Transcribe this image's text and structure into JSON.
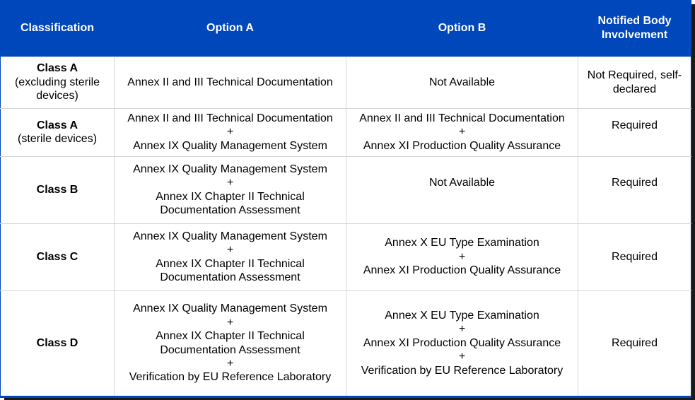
{
  "header": {
    "classification": "Classification",
    "option_a": "Option A",
    "option_b": "Option B",
    "notified_body": "Notified Body Involvement"
  },
  "rows": [
    {
      "class_name": "Class A",
      "class_sub": "(excluding sterile devices)",
      "option_a": [
        "Annex II and III Technical Documentation"
      ],
      "option_b": [
        "Not Available"
      ],
      "notified_body": "Not Required, self-declared"
    },
    {
      "class_name": "Class A",
      "class_sub": "(sterile devices)",
      "option_a": [
        "Annex II and III Technical Documentation",
        "+",
        "Annex IX Quality Management System"
      ],
      "option_b": [
        "Annex II and III Technical Documentation",
        "+",
        "Annex XI Production Quality Assurance"
      ],
      "notified_body": "Required"
    },
    {
      "class_name": "Class B",
      "class_sub": "",
      "option_a": [
        "Annex IX Quality Management System",
        "+",
        "Annex IX Chapter II Technical",
        "Documentation Assessment"
      ],
      "option_b": [
        "Not Available"
      ],
      "notified_body": "Required"
    },
    {
      "class_name": "Class C",
      "class_sub": "",
      "option_a": [
        "Annex IX Quality Management System",
        "+",
        "Annex IX Chapter II Technical",
        "Documentation Assessment"
      ],
      "option_b": [
        "Annex X EU Type Examination",
        "+",
        "Annex XI Production Quality Assurance"
      ],
      "notified_body": "Required"
    },
    {
      "class_name": "Class D",
      "class_sub": "",
      "option_a": [
        "Annex IX Quality Management System",
        "+",
        "Annex IX Chapter II Technical",
        "Documentation Assessment",
        "+",
        "Verification by EU Reference Laboratory"
      ],
      "option_b": [
        "Annex X EU Type Examination",
        "+",
        "Annex XI Production Quality Assurance",
        "+",
        "Verification by EU Reference Laboratory"
      ],
      "notified_body": "Required"
    }
  ]
}
